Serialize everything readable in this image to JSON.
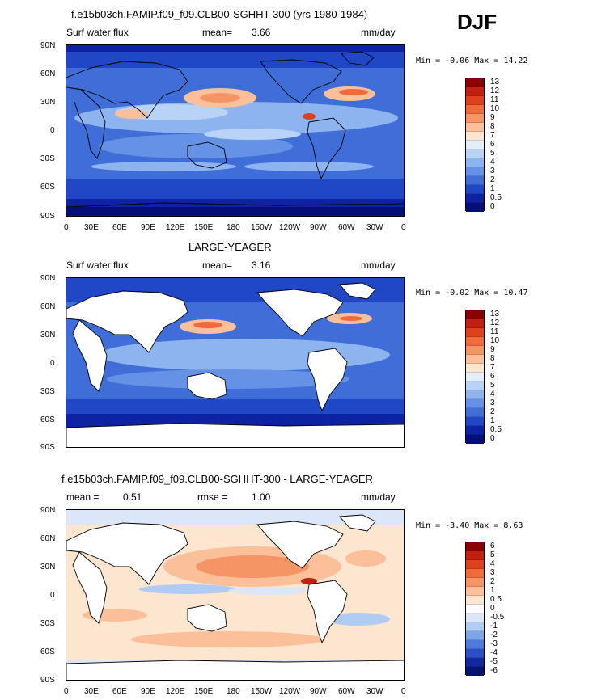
{
  "season": "DJF",
  "panels": [
    {
      "title": "f.e15b03ch.FAMIP.f09_f09.CLB00-SGHHT-300 (yrs 1980-1984)",
      "left_label": "Surf water flux",
      "stat_label": "mean=",
      "stat_value": "3.66",
      "units": "mm/day",
      "min_max": "Min =  -0.06 Max =  14.22",
      "levels": [
        "13",
        "12",
        "11",
        "10",
        "9",
        "8",
        "7",
        "6",
        "5",
        "4",
        "3",
        "2",
        "1",
        "0.5",
        "0"
      ]
    },
    {
      "title": "LARGE-YEAGER",
      "left_label": "Surf water flux",
      "stat_label": "mean=",
      "stat_value": "3.16",
      "units": "mm/day",
      "min_max": "Min =  -0.02 Max =  10.47",
      "levels": [
        "13",
        "12",
        "11",
        "10",
        "9",
        "8",
        "7",
        "6",
        "5",
        "4",
        "3",
        "2",
        "1",
        "0.5",
        "0"
      ]
    },
    {
      "title": "f.e15b03ch.FAMIP.f09_f09.CLB00-SGHHT-300 - LARGE-YEAGER",
      "left_label": "mean =",
      "stat_label": "",
      "stat_value": "0.51",
      "rmse_label": "rmse =",
      "rmse_value": "1.00",
      "units": "mm/day",
      "min_max": "Min =  -3.40 Max =   8.63",
      "levels": [
        "6",
        "5",
        "4",
        "3",
        "2",
        "1",
        "0.5",
        "0",
        "-0.5",
        "-1",
        "-2",
        "-3",
        "-4",
        "-5",
        "-6"
      ]
    }
  ],
  "lat_labels": [
    "90N",
    "60N",
    "30N",
    "0",
    "30S",
    "60S",
    "90S"
  ],
  "lon_labels": [
    "0",
    "30E",
    "60E",
    "90E",
    "120E",
    "150E",
    "180",
    "150W",
    "120W",
    "90W",
    "60W",
    "30W",
    "0"
  ],
  "colors": {
    "abs_scale": [
      "#8b0000",
      "#c1200f",
      "#e0401e",
      "#f06a3c",
      "#f59565",
      "#fbbf99",
      "#fde6d0",
      "#e4eefb",
      "#b9d3f7",
      "#8eb4f0",
      "#6692e6",
      "#3f6ed9",
      "#2047c6",
      "#0e23a3",
      "#050f78"
    ],
    "diff_scale": [
      "#8b0000",
      "#c1200f",
      "#e0401e",
      "#f06a3c",
      "#f59565",
      "#fbbf99",
      "#fde6d0",
      "#ffffff",
      "#dbe7f8",
      "#b1ccf2",
      "#7ea5e8",
      "#4f7bdd",
      "#2b4fca",
      "#13289f",
      "#061270"
    ]
  }
}
